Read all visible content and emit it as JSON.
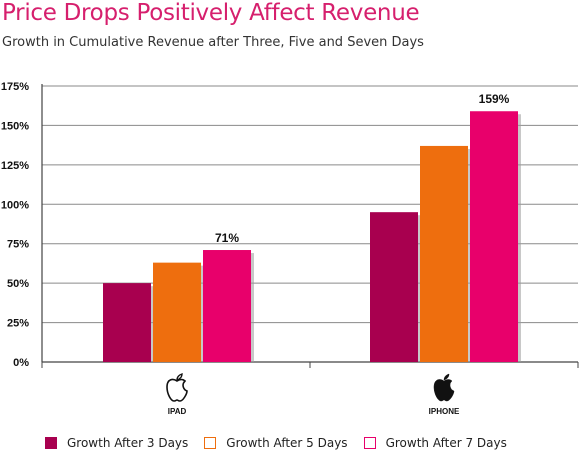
{
  "header": {
    "title": "Price Drops Positively Affect Revenue",
    "subtitle": "Growth in Cumulative Revenue after Three, Five and Seven Days"
  },
  "colors": {
    "series": [
      "#a8004f",
      "#ee6e0e",
      "#e8006b"
    ],
    "title": "#d61f6d"
  },
  "chart_data": {
    "type": "bar",
    "title": "Price Drops Positively Affect Revenue",
    "subtitle": "Growth in Cumulative Revenue after Three, Five and Seven Days",
    "categories": [
      "IPAD",
      "IPHONE"
    ],
    "category_icons": [
      "apple-outline-icon",
      "apple-filled-icon"
    ],
    "series": [
      {
        "name": "Growth After 3 Days",
        "values": [
          50,
          95
        ]
      },
      {
        "name": "Growth After 5 Days",
        "values": [
          63,
          137
        ]
      },
      {
        "name": "Growth After 7 Days",
        "values": [
          71,
          159
        ]
      }
    ],
    "data_labels": [
      {
        "category": "IPAD",
        "series": "Growth After 7 Days",
        "text": "71%"
      },
      {
        "category": "IPHONE",
        "series": "Growth After 7 Days",
        "text": "159%"
      }
    ],
    "yticks": [
      "0%",
      "25%",
      "50%",
      "75%",
      "100%",
      "125%",
      "150%",
      "175%"
    ],
    "ylim": [
      0,
      175
    ],
    "grid": true,
    "legend_position": "bottom",
    "xlabel": "",
    "ylabel": ""
  }
}
